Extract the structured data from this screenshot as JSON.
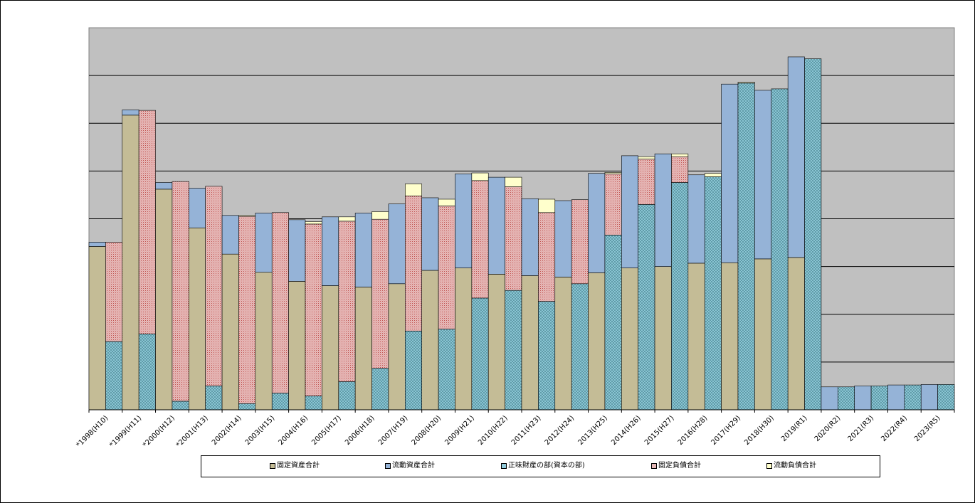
{
  "chart_data": {
    "type": "bar",
    "categories": [
      "*1998(H10)",
      "*1999(H11)",
      "*2000(H12)",
      "*2001(H13)",
      "2002(H14)",
      "2003(H15)",
      "2004(H16)",
      "2005(H17)",
      "2006(H18)",
      "2007(H19)",
      "2008(H20)",
      "2009(H21)",
      "2010(H22)",
      "2011(H23)",
      "2012(H24)",
      "2013(H25)",
      "2014(H26)",
      "2015(H27)",
      "2016(H28)",
      "2017(H29)",
      "2018(H30)",
      "2019(R1)",
      "2020(R2)",
      "2021(R3)",
      "2022(R4)",
      "2023(R5)"
    ],
    "ylim": [
      0,
      8
    ],
    "grid": true,
    "y_tick_labels_shown": false,
    "legend_position": "bottom",
    "stacks": [
      [
        "固定資産合計",
        "流動資産合計"
      ],
      [
        "正味財産の部(資本の部)",
        "固定負債合計",
        "流動負債合計"
      ]
    ],
    "series": [
      {
        "name": "固定資産合計",
        "color": "#c4bc96",
        "pattern": "solid",
        "values": [
          3.42,
          6.17,
          4.62,
          3.81,
          3.26,
          2.88,
          2.69,
          2.6,
          2.57,
          2.64,
          2.92,
          2.97,
          2.84,
          2.81,
          2.78,
          2.87,
          2.97,
          3.0,
          3.07,
          3.08,
          3.16,
          3.19,
          0.0,
          0.0,
          0.0,
          0.0
        ]
      },
      {
        "name": "流動資産合計",
        "color": "#95b3d7",
        "pattern": "solid",
        "values": [
          0.09,
          0.11,
          0.14,
          0.83,
          0.81,
          1.24,
          1.29,
          1.44,
          1.55,
          1.67,
          1.52,
          1.97,
          2.03,
          1.61,
          1.6,
          2.08,
          2.35,
          2.36,
          1.85,
          3.74,
          3.53,
          4.2,
          0.48,
          0.5,
          0.52,
          0.53
        ]
      },
      {
        "name": "正味財産の部(資本の部)",
        "color": "#92cddc",
        "pattern": "cross",
        "values": [
          1.43,
          1.59,
          0.18,
          0.5,
          0.13,
          0.35,
          0.29,
          0.59,
          0.87,
          1.65,
          1.69,
          2.34,
          2.5,
          2.27,
          2.64,
          3.66,
          4.3,
          4.76,
          4.88,
          6.84,
          6.72,
          7.35,
          0.48,
          0.5,
          0.52,
          0.53
        ]
      },
      {
        "name": "固定負債合計",
        "color": "#e6b9b8",
        "pattern": "dots",
        "values": [
          2.08,
          4.68,
          4.6,
          4.18,
          3.92,
          3.78,
          3.6,
          3.36,
          3.12,
          2.83,
          2.58,
          2.46,
          2.17,
          1.86,
          1.76,
          1.28,
          0.95,
          0.54,
          0.0,
          0.0,
          0.0,
          0.0,
          0.0,
          0.0,
          0.0,
          0.0
        ]
      },
      {
        "name": "流動負債合計",
        "color": "#ffffcc",
        "pattern": "solid",
        "values": [
          0.0,
          0.0,
          0.0,
          0.0,
          0.02,
          0.0,
          0.05,
          0.09,
          0.16,
          0.25,
          0.14,
          0.16,
          0.2,
          0.28,
          0.0,
          0.03,
          0.05,
          0.06,
          0.07,
          0.02,
          0.0,
          0.0,
          0.0,
          0.0,
          0.0,
          0.0
        ]
      }
    ]
  }
}
